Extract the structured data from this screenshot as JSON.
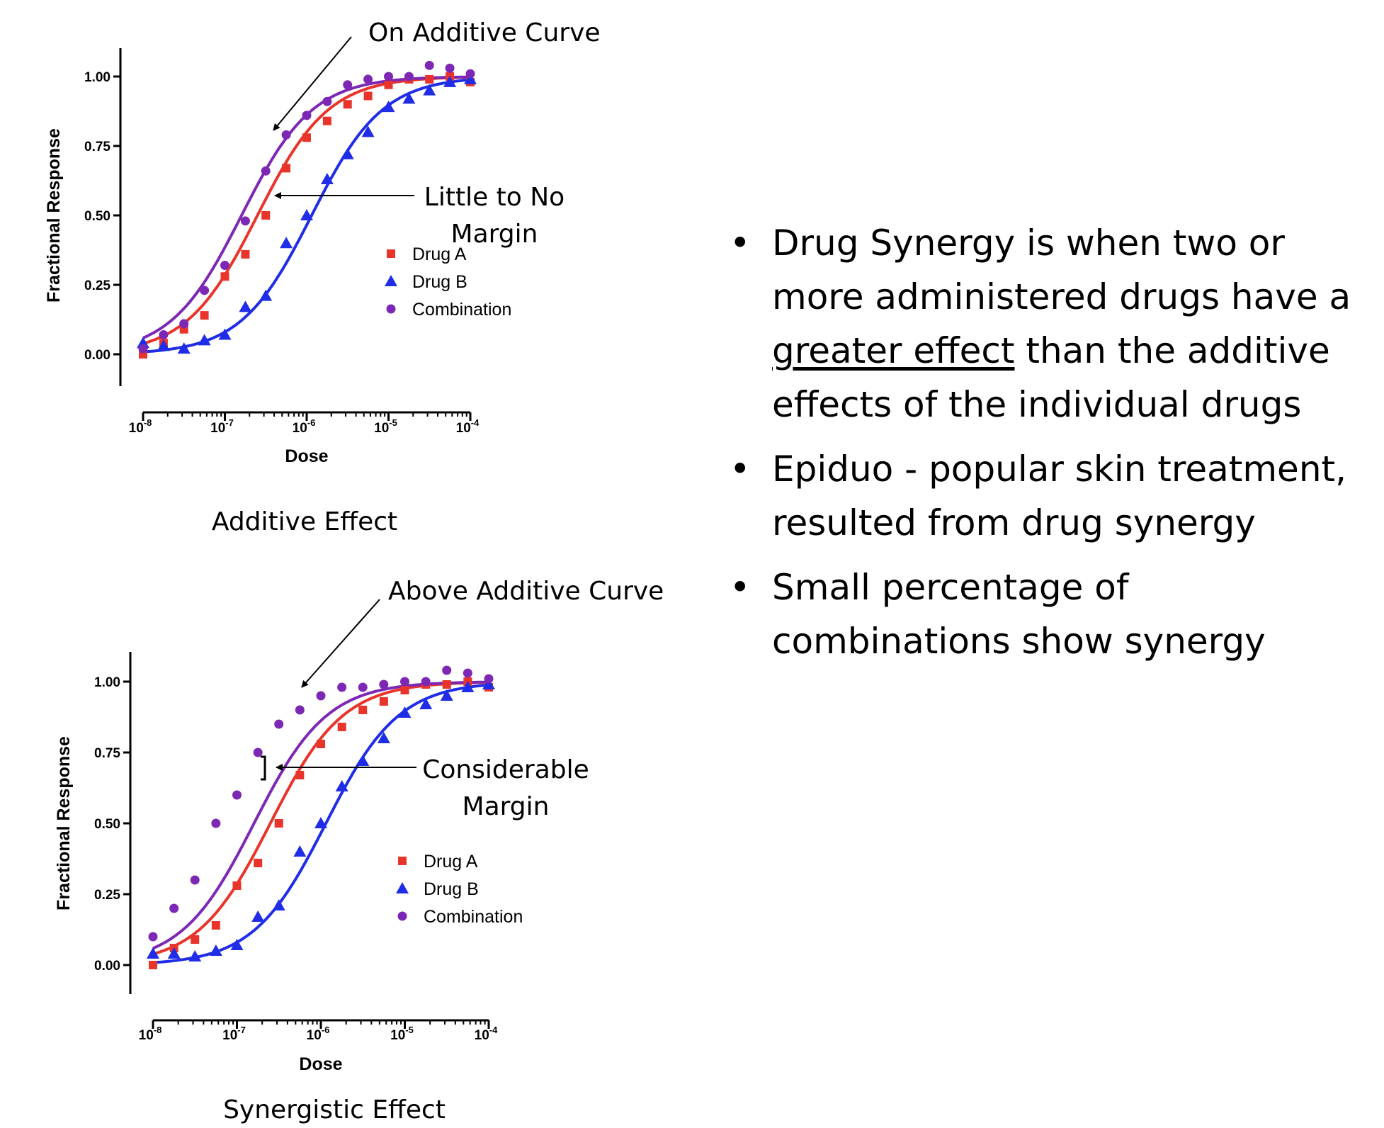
{
  "chart_data": [
    {
      "type": "scatter",
      "caption": "Additive Effect",
      "xlabel": "Dose",
      "ylabel": "Fractional  Response",
      "xscale": "log",
      "xlim": [
        1e-08,
        0.0001
      ],
      "ylim": [
        0,
        1
      ],
      "yticks": [
        "0.00",
        "0.25",
        "0.50",
        "0.75",
        "1.00"
      ],
      "xticks": [
        {
          "base": "10",
          "exp": "-8"
        },
        {
          "base": "10",
          "exp": "-7"
        },
        {
          "base": "10",
          "exp": "-6"
        },
        {
          "base": "10",
          "exp": "-5"
        },
        {
          "base": "10",
          "exp": "-4"
        }
      ],
      "legend": [
        "Drug A",
        "Drug B",
        "Combination"
      ],
      "legend_position": "center-right",
      "series": [
        {
          "name": "Drug A",
          "color": "#e8342a",
          "marker": "square",
          "x": [
            1e-08,
            1.78e-08,
            3.16e-08,
            5.62e-08,
            1e-07,
            1.78e-07,
            3.16e-07,
            5.62e-07,
            1e-06,
            1.78e-06,
            3.16e-06,
            5.62e-06,
            1e-05,
            1.78e-05,
            3.16e-05,
            5.62e-05,
            0.0001
          ],
          "y": [
            0.0,
            0.04,
            0.09,
            0.14,
            0.28,
            0.36,
            0.5,
            0.67,
            0.78,
            0.84,
            0.9,
            0.93,
            0.97,
            0.99,
            0.99,
            1.0,
            0.98
          ],
          "curve": {
            "ec50": 2.5e-07
          }
        },
        {
          "name": "Drug B",
          "color": "#1f2de6",
          "marker": "triangle",
          "x": [
            1e-08,
            1.78e-08,
            3.16e-08,
            5.62e-08,
            1e-07,
            1.78e-07,
            3.16e-07,
            5.62e-07,
            1e-06,
            1.78e-06,
            3.16e-06,
            5.62e-06,
            1e-05,
            1.78e-05,
            3.16e-05,
            5.62e-05,
            0.0001
          ],
          "y": [
            0.04,
            0.03,
            0.02,
            0.05,
            0.07,
            0.17,
            0.21,
            0.4,
            0.5,
            0.63,
            0.72,
            0.8,
            0.89,
            0.92,
            0.95,
            0.98,
            0.99
          ],
          "curve": {
            "ec50": 1.15e-06
          }
        },
        {
          "name": "Combination",
          "color": "#7d28b5",
          "marker": "circle",
          "x": [
            1e-08,
            1.78e-08,
            3.16e-08,
            5.62e-08,
            1e-07,
            1.78e-07,
            3.16e-07,
            5.62e-07,
            1e-06,
            1.78e-06,
            3.16e-06,
            5.62e-06,
            1e-05,
            1.78e-05,
            3.16e-05,
            5.62e-05,
            0.0001
          ],
          "y": [
            0.02,
            0.07,
            0.11,
            0.23,
            0.32,
            0.48,
            0.66,
            0.79,
            0.86,
            0.91,
            0.97,
            0.99,
            1.0,
            1.0,
            1.04,
            1.03,
            1.01
          ],
          "curve": {
            "ec50": 1.6e-07
          }
        }
      ],
      "annotations": [
        {
          "text": "On Additive Curve",
          "lines": [
            "On Additive Curve"
          ],
          "align": "start"
        },
        {
          "text": "Little to No Margin",
          "lines": [
            "Little to No",
            "Margin"
          ],
          "align": "middle"
        }
      ]
    },
    {
      "type": "scatter",
      "caption": "Synergistic Effect",
      "xlabel": "Dose",
      "ylabel": "Fractional  Response",
      "xscale": "log",
      "xlim": [
        1e-08,
        0.0001
      ],
      "ylim": [
        0,
        1
      ],
      "yticks": [
        "0.00",
        "0.25",
        "0.50",
        "0.75",
        "1.00"
      ],
      "xticks": [
        {
          "base": "10",
          "exp": "-8"
        },
        {
          "base": "10",
          "exp": "-7"
        },
        {
          "base": "10",
          "exp": "-6"
        },
        {
          "base": "10",
          "exp": "-5"
        },
        {
          "base": "10",
          "exp": "-4"
        }
      ],
      "legend": [
        "Drug A",
        "Drug B",
        "Combination"
      ],
      "legend_position": "center-right",
      "series": [
        {
          "name": "Drug A",
          "color": "#e8342a",
          "marker": "square",
          "x": [
            1e-08,
            1.78e-08,
            3.16e-08,
            5.62e-08,
            1e-07,
            1.78e-07,
            3.16e-07,
            5.62e-07,
            1e-06,
            1.78e-06,
            3.16e-06,
            5.62e-06,
            1e-05,
            1.78e-05,
            3.16e-05,
            5.62e-05,
            0.0001
          ],
          "y": [
            0.0,
            0.06,
            0.09,
            0.14,
            0.28,
            0.36,
            0.5,
            0.67,
            0.78,
            0.84,
            0.9,
            0.93,
            0.97,
            0.99,
            0.99,
            1.0,
            0.98
          ],
          "curve": {
            "ec50": 2.5e-07
          }
        },
        {
          "name": "Drug B",
          "color": "#1f2de6",
          "marker": "triangle",
          "x": [
            1e-08,
            1.78e-08,
            3.16e-08,
            5.62e-08,
            1e-07,
            1.78e-07,
            3.16e-07,
            5.62e-07,
            1e-06,
            1.78e-06,
            3.16e-06,
            5.62e-06,
            1e-05,
            1.78e-05,
            3.16e-05,
            5.62e-05,
            0.0001
          ],
          "y": [
            0.04,
            0.04,
            0.03,
            0.05,
            0.07,
            0.17,
            0.21,
            0.4,
            0.5,
            0.63,
            0.72,
            0.8,
            0.89,
            0.92,
            0.95,
            0.98,
            0.99
          ],
          "curve": {
            "ec50": 1.15e-06
          }
        },
        {
          "name": "Combination",
          "color": "#7d28b5",
          "marker": "circle",
          "x": [
            1e-08,
            1.78e-08,
            3.16e-08,
            5.62e-08,
            1e-07,
            1.78e-07,
            3.16e-07,
            5.62e-07,
            1e-06,
            1.78e-06,
            3.16e-06,
            5.62e-06,
            1e-05,
            1.78e-05,
            3.16e-05,
            5.62e-05,
            0.0001
          ],
          "y": [
            0.1,
            0.2,
            0.3,
            0.5,
            0.6,
            0.75,
            0.85,
            0.9,
            0.95,
            0.98,
            0.98,
            0.99,
            1.0,
            1.0,
            1.04,
            1.03,
            1.01
          ],
          "curve": {
            "ec50": 1.6e-07
          }
        }
      ],
      "annotations": [
        {
          "text": "Above Additive Curve",
          "lines": [
            "Above Additive Curve"
          ],
          "align": "start"
        },
        {
          "text": "Considerable Margin",
          "lines": [
            "Considerable",
            "Margin"
          ],
          "align": "middle"
        }
      ]
    }
  ],
  "bullets": [
    {
      "before": "Drug Synergy is when two or more administered drugs have a ",
      "underline": "greater effect",
      "after": " than the additive effects of the individual drugs"
    },
    {
      "before": "Epiduo - popular skin treatment, resulted from drug synergy",
      "underline": "",
      "after": ""
    },
    {
      "before": "Small percentage of combinations show synergy",
      "underline": "",
      "after": ""
    }
  ]
}
